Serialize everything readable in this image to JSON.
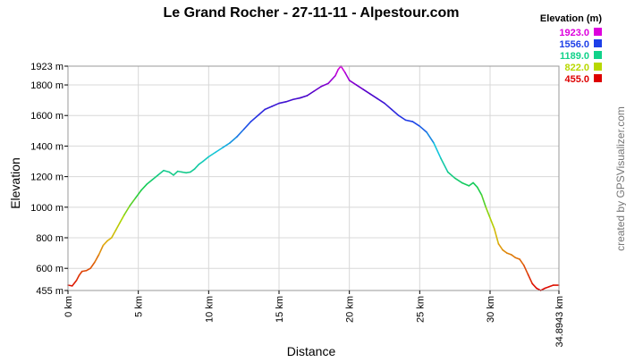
{
  "chart_data": {
    "type": "line",
    "title": "Le Grand Rocher - 27-11-11 - Alpestour.com",
    "xlabel": "Distance",
    "ylabel": "Elevation",
    "side_credit": "created by GPSVisualizer.com",
    "xlim": [
      0,
      34.8943
    ],
    "ylim": [
      455,
      1923
    ],
    "grid": true,
    "x_ticks": [
      {
        "value": 0,
        "label": "0 km"
      },
      {
        "value": 5,
        "label": "5 km"
      },
      {
        "value": 10,
        "label": "10 km"
      },
      {
        "value": 15,
        "label": "15 km"
      },
      {
        "value": 20,
        "label": "20 km"
      },
      {
        "value": 25,
        "label": "25 km"
      },
      {
        "value": 30,
        "label": "30 km"
      },
      {
        "value": 34.8943,
        "label": "34.8943 km"
      }
    ],
    "y_ticks": [
      {
        "value": 455,
        "label": "455 m"
      },
      {
        "value": 600,
        "label": "600 m"
      },
      {
        "value": 800,
        "label": "800 m"
      },
      {
        "value": 1000,
        "label": "1000 m"
      },
      {
        "value": 1200,
        "label": "1200 m"
      },
      {
        "value": 1400,
        "label": "1400 m"
      },
      {
        "value": 1600,
        "label": "1600 m"
      },
      {
        "value": 1800,
        "label": "1800 m"
      },
      {
        "value": 1923,
        "label": "1923 m"
      }
    ],
    "legend": {
      "title": "Elevation (m)",
      "placement": "top-right",
      "entries": [
        {
          "label": "1923.0",
          "color": "#dd00dd"
        },
        {
          "label": "1556.0",
          "color": "#1d3fe8"
        },
        {
          "label": "1189.0",
          "color": "#11d28a"
        },
        {
          "label": "822.0",
          "color": "#b8d800"
        },
        {
          "label": "455.0",
          "color": "#dd0000"
        }
      ]
    },
    "series": [
      {
        "x": [
          0,
          0.3,
          0.6,
          0.8,
          1.0,
          1.3,
          1.6,
          1.9,
          2.2,
          2.5,
          2.8,
          3.1,
          3.4,
          3.7,
          4.0,
          4.4,
          4.8,
          5.2,
          5.6,
          6.0,
          6.4,
          6.8,
          7.2,
          7.5,
          7.8,
          8.1,
          8.4,
          8.7,
          9.0,
          9.3,
          9.6,
          10.0,
          10.5,
          11.0,
          11.5,
          12.0,
          12.5,
          13.0,
          13.5,
          14.0,
          14.5,
          15.0,
          15.5,
          16.0,
          16.5,
          17.0,
          17.5,
          18.0,
          18.5,
          19.0,
          19.2,
          19.4,
          19.7,
          20.0,
          20.5,
          21.0,
          21.5,
          22.0,
          22.5,
          23.0,
          23.5,
          24.0,
          24.5,
          25.0,
          25.5,
          26.0,
          26.5,
          27.0,
          27.5,
          28.0,
          28.5,
          28.8,
          29.1,
          29.4,
          29.7,
          30.0,
          30.3,
          30.6,
          30.9,
          31.2,
          31.5,
          31.8,
          32.1,
          32.4,
          32.7,
          33.0,
          33.3,
          33.6,
          33.9,
          34.2,
          34.5,
          34.8943
        ],
        "y": [
          490,
          485,
          520,
          555,
          580,
          585,
          600,
          640,
          690,
          750,
          780,
          800,
          850,
          900,
          950,
          1010,
          1060,
          1110,
          1150,
          1180,
          1210,
          1240,
          1230,
          1210,
          1235,
          1230,
          1225,
          1230,
          1250,
          1280,
          1300,
          1330,
          1360,
          1390,
          1420,
          1460,
          1510,
          1560,
          1600,
          1640,
          1660,
          1680,
          1690,
          1705,
          1715,
          1730,
          1760,
          1790,
          1810,
          1860,
          1900,
          1923,
          1880,
          1830,
          1800,
          1770,
          1740,
          1710,
          1680,
          1640,
          1600,
          1570,
          1560,
          1530,
          1490,
          1420,
          1320,
          1230,
          1190,
          1160,
          1140,
          1160,
          1130,
          1080,
          1000,
          930,
          860,
          760,
          720,
          700,
          690,
          670,
          660,
          620,
          560,
          500,
          470,
          455,
          470,
          480,
          490,
          490
        ]
      }
    ]
  }
}
